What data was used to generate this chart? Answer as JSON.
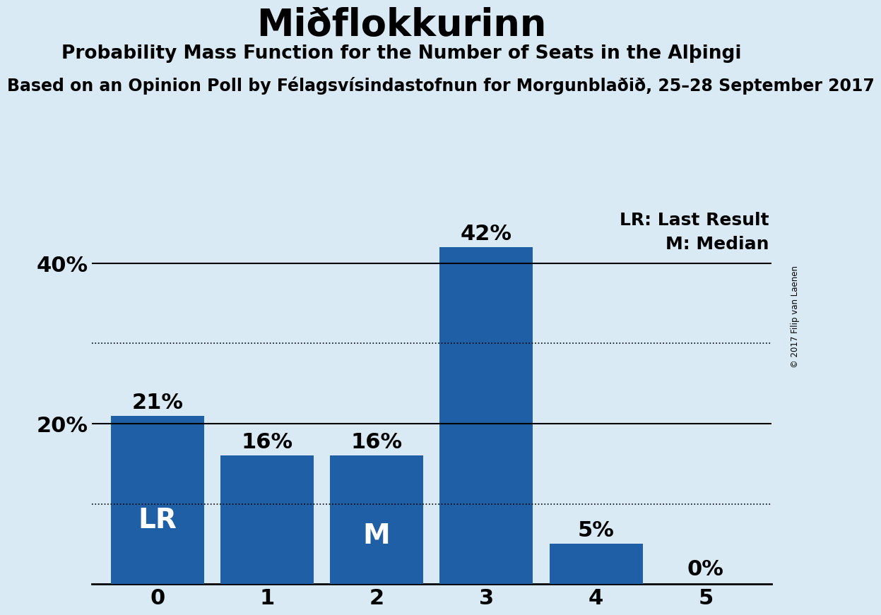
{
  "title": "Miðflokkurinn",
  "subtitle": "Probability Mass Function for the Number of Seats in the Alþingi",
  "subsubtitle": "Based on an Opinion Poll by Félagsvísindastofnun for Morgunblaðið, 25–28 September 2017",
  "copyright": "© 2017 Filip van Laenen",
  "categories": [
    0,
    1,
    2,
    3,
    4,
    5
  ],
  "values": [
    0.21,
    0.16,
    0.16,
    0.42,
    0.05,
    0.0
  ],
  "bar_labels": [
    "21%",
    "16%",
    "16%",
    "42%",
    "5%",
    "0%"
  ],
  "bar_color": "#1f5fa6",
  "background_color": "#daeaf5",
  "lr_bar_index": 0,
  "median_bar_index": 2,
  "yticks": [
    0.0,
    0.2,
    0.4
  ],
  "ytick_labels": [
    "",
    "20%",
    "40%"
  ],
  "ylim": [
    0,
    0.48
  ],
  "solid_hlines": [
    0.2,
    0.4
  ],
  "dotted_hlines": [
    0.3,
    0.1
  ],
  "legend_text_lr": "LR: Last Result",
  "legend_text_m": "M: Median",
  "title_fontsize": 38,
  "subtitle_fontsize": 19,
  "subsubtitle_fontsize": 17,
  "bar_label_fontsize": 22,
  "axis_label_fontsize": 22,
  "legend_fontsize": 18,
  "lr_label_fontsize": 28,
  "m_label_fontsize": 28
}
